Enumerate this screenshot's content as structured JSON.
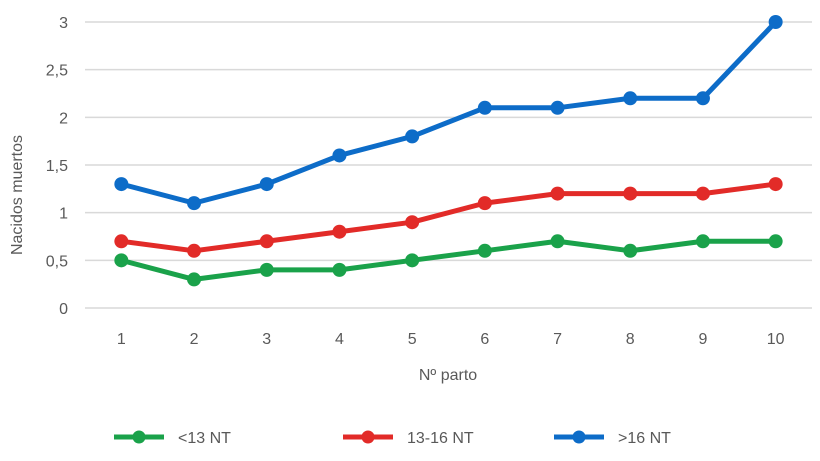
{
  "chart_data": {
    "type": "line",
    "title": "",
    "categories": [
      "1",
      "2",
      "3",
      "4",
      "5",
      "6",
      "7",
      "8",
      "9",
      "10"
    ],
    "series": [
      {
        "name": "<13 NT",
        "color": "#1aa24a",
        "values": [
          0.5,
          0.3,
          0.4,
          0.4,
          0.5,
          0.6,
          0.7,
          0.6,
          0.7,
          0.7
        ]
      },
      {
        "name": "13-16 NT",
        "color": "#e22b28",
        "values": [
          0.7,
          0.6,
          0.7,
          0.8,
          0.9,
          1.1,
          1.2,
          1.2,
          1.2,
          1.3
        ]
      },
      {
        "name": ">16 NT",
        "color": "#0d6cc8",
        "values": [
          1.3,
          1.1,
          1.3,
          1.6,
          1.8,
          2.1,
          2.1,
          2.2,
          2.2,
          3.0
        ]
      }
    ],
    "xlabel": "Nº parto",
    "ylabel": "Nacidos muertos",
    "ylim": [
      0,
      3
    ],
    "ytick_step": 0.5,
    "ytick_labels": [
      "0",
      "0,5",
      "1",
      "1,5",
      "2",
      "2,5",
      "3"
    ],
    "grid": "horizontal",
    "legend_position": "bottom",
    "colors": {
      "text": "#595959",
      "gridline": "#d9d9d9",
      "background": "#ffffff"
    }
  }
}
